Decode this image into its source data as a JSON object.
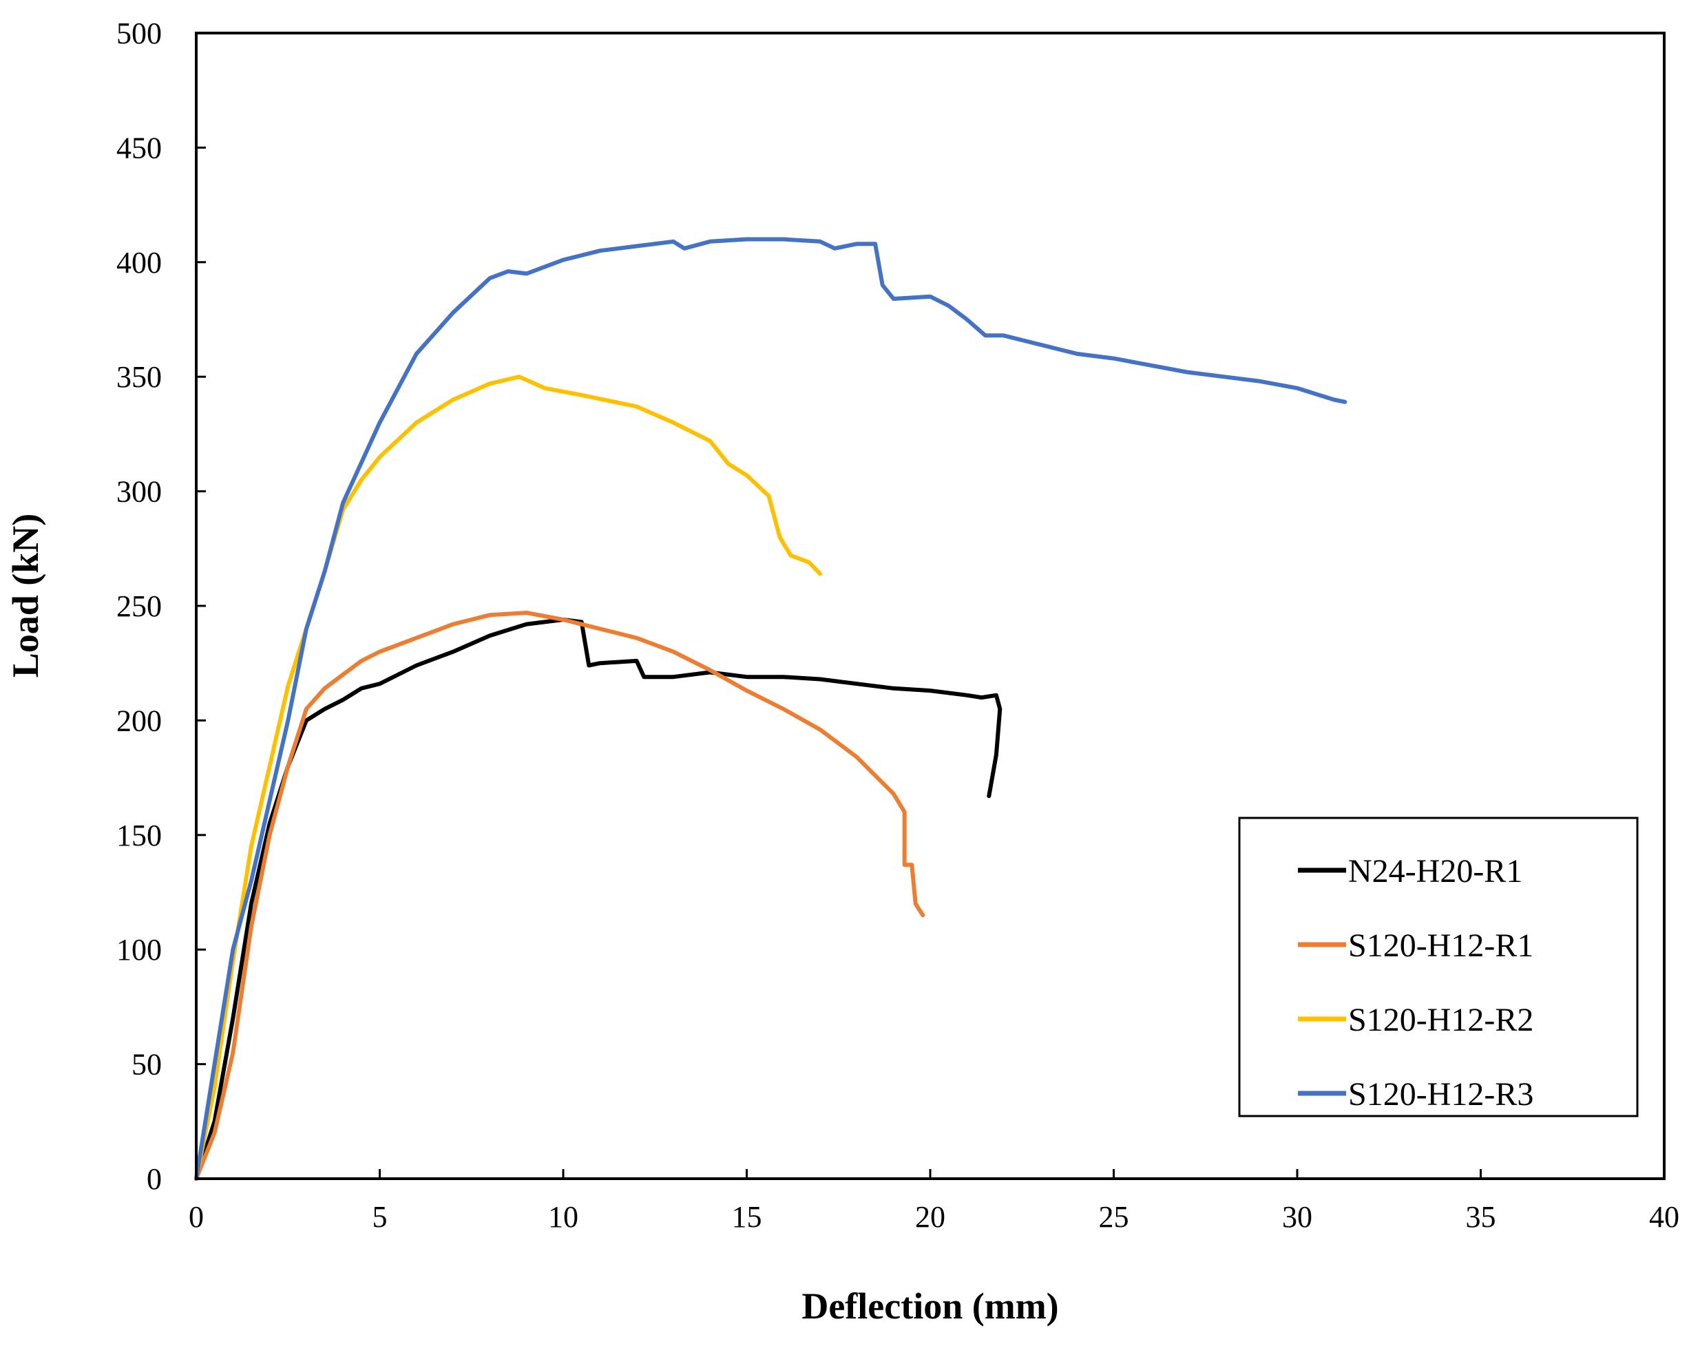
{
  "chart_data": {
    "type": "line",
    "title": "",
    "xlabel": "Deflection (mm)",
    "ylabel": "Load (kN)",
    "xlim": [
      0,
      40
    ],
    "ylim": [
      0,
      500
    ],
    "xticks": [
      0,
      5,
      10,
      15,
      20,
      25,
      30,
      35,
      40
    ],
    "yticks": [
      0,
      50,
      100,
      150,
      200,
      250,
      300,
      350,
      400,
      450,
      500
    ],
    "grid": false,
    "legend_position": "bottom-right",
    "series": [
      {
        "name": "N24-H20-R1",
        "color": "#000000",
        "points": [
          [
            0,
            0
          ],
          [
            0.5,
            25
          ],
          [
            1.0,
            70
          ],
          [
            1.5,
            120
          ],
          [
            2.0,
            155
          ],
          [
            2.5,
            180
          ],
          [
            3.0,
            200
          ],
          [
            3.5,
            205
          ],
          [
            4.0,
            209
          ],
          [
            4.5,
            214
          ],
          [
            5.0,
            216
          ],
          [
            6.0,
            224
          ],
          [
            7.0,
            230
          ],
          [
            8.0,
            237
          ],
          [
            9.0,
            242
          ],
          [
            10.0,
            244
          ],
          [
            10.5,
            243
          ],
          [
            10.7,
            224
          ],
          [
            11.0,
            225
          ],
          [
            12.0,
            226
          ],
          [
            12.2,
            219
          ],
          [
            13.0,
            219
          ],
          [
            14.0,
            221
          ],
          [
            15.0,
            219
          ],
          [
            16.0,
            219
          ],
          [
            17.0,
            218
          ],
          [
            18.0,
            216
          ],
          [
            19.0,
            214
          ],
          [
            20.0,
            213
          ],
          [
            21.0,
            211
          ],
          [
            21.4,
            210
          ],
          [
            21.8,
            211
          ],
          [
            21.9,
            205
          ],
          [
            21.8,
            185
          ],
          [
            21.6,
            167
          ]
        ]
      },
      {
        "name": "S120-H12-R1",
        "color": "#ED7D31",
        "points": [
          [
            0,
            0
          ],
          [
            0.5,
            20
          ],
          [
            1.0,
            55
          ],
          [
            1.5,
            110
          ],
          [
            2.0,
            150
          ],
          [
            2.5,
            180
          ],
          [
            3.0,
            205
          ],
          [
            3.5,
            214
          ],
          [
            4.0,
            220
          ],
          [
            4.5,
            226
          ],
          [
            5.0,
            230
          ],
          [
            6.0,
            236
          ],
          [
            7.0,
            242
          ],
          [
            8.0,
            246
          ],
          [
            9.0,
            247
          ],
          [
            10.0,
            244
          ],
          [
            11.0,
            240
          ],
          [
            12.0,
            236
          ],
          [
            13.0,
            230
          ],
          [
            14.0,
            222
          ],
          [
            15.0,
            213
          ],
          [
            16.0,
            205
          ],
          [
            17.0,
            196
          ],
          [
            18.0,
            184
          ],
          [
            19.0,
            168
          ],
          [
            19.3,
            160
          ],
          [
            19.3,
            137
          ],
          [
            19.5,
            137
          ],
          [
            19.6,
            120
          ],
          [
            19.8,
            115
          ]
        ]
      },
      {
        "name": "S120-H12-R2",
        "color": "#FFC000",
        "points": [
          [
            0,
            0
          ],
          [
            0.5,
            40
          ],
          [
            1.0,
            95
          ],
          [
            1.5,
            145
          ],
          [
            2.0,
            180
          ],
          [
            2.5,
            215
          ],
          [
            3.0,
            240
          ],
          [
            3.5,
            265
          ],
          [
            4.0,
            292
          ],
          [
            4.5,
            305
          ],
          [
            5.0,
            315
          ],
          [
            6.0,
            330
          ],
          [
            7.0,
            340
          ],
          [
            8.0,
            347
          ],
          [
            8.8,
            350
          ],
          [
            9.5,
            345
          ],
          [
            10.5,
            342
          ],
          [
            12.0,
            337
          ],
          [
            13.0,
            330
          ],
          [
            14.0,
            322
          ],
          [
            14.5,
            312
          ],
          [
            15.0,
            307
          ],
          [
            15.6,
            298
          ],
          [
            15.9,
            280
          ],
          [
            16.2,
            272
          ],
          [
            16.7,
            269
          ],
          [
            17.0,
            264
          ]
        ]
      },
      {
        "name": "S120-H12-R3",
        "color": "#4472C4",
        "points": [
          [
            0,
            0
          ],
          [
            0.5,
            50
          ],
          [
            1.0,
            100
          ],
          [
            1.5,
            130
          ],
          [
            2.0,
            165
          ],
          [
            2.5,
            200
          ],
          [
            3.0,
            240
          ],
          [
            3.5,
            265
          ],
          [
            4.0,
            295
          ],
          [
            5.0,
            330
          ],
          [
            6.0,
            360
          ],
          [
            7.0,
            378
          ],
          [
            8.0,
            393
          ],
          [
            8.5,
            396
          ],
          [
            9.0,
            395
          ],
          [
            10.0,
            401
          ],
          [
            11.0,
            405
          ],
          [
            12.0,
            407
          ],
          [
            13.0,
            409
          ],
          [
            13.3,
            406
          ],
          [
            14.0,
            409
          ],
          [
            15.0,
            410
          ],
          [
            16.0,
            410
          ],
          [
            17.0,
            409
          ],
          [
            17.4,
            406
          ],
          [
            18.0,
            408
          ],
          [
            18.5,
            408
          ],
          [
            18.7,
            390
          ],
          [
            19.0,
            384
          ],
          [
            20.0,
            385
          ],
          [
            20.5,
            381
          ],
          [
            21.0,
            375
          ],
          [
            21.5,
            368
          ],
          [
            22.0,
            368
          ],
          [
            23.0,
            364
          ],
          [
            24.0,
            360
          ],
          [
            25.0,
            358
          ],
          [
            26.0,
            355
          ],
          [
            27.0,
            352
          ],
          [
            28.0,
            350
          ],
          [
            29.0,
            348
          ],
          [
            30.0,
            345
          ],
          [
            31.0,
            340
          ],
          [
            31.3,
            339
          ]
        ]
      }
    ]
  }
}
